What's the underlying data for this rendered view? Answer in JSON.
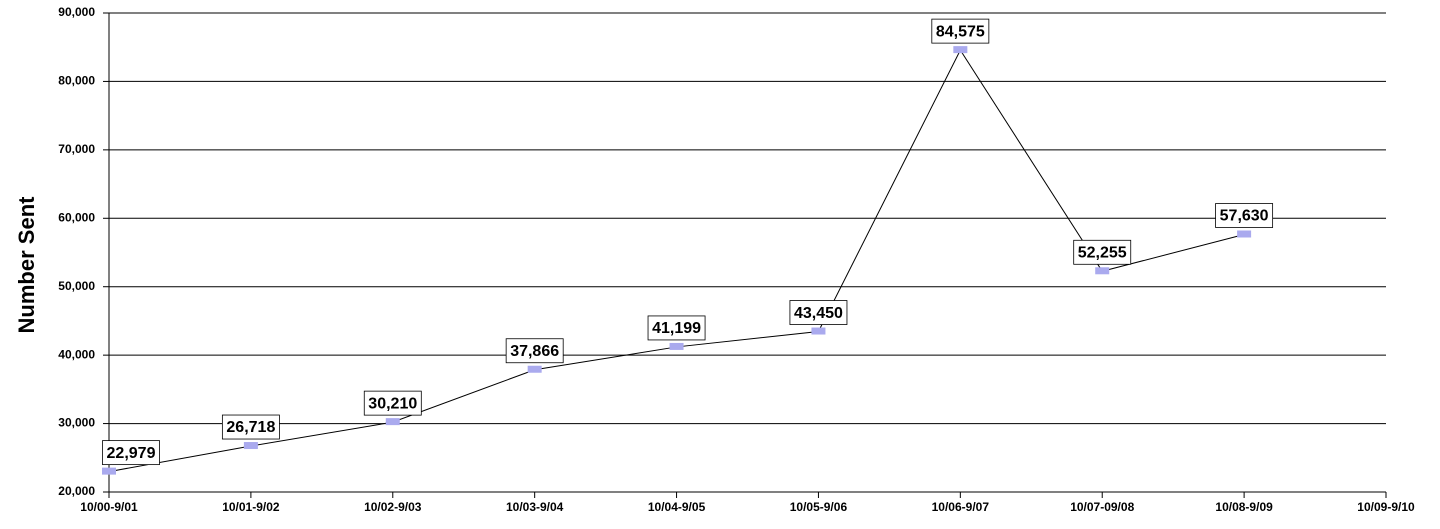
{
  "chart_data": {
    "type": "line",
    "y_label": "Number Sent",
    "categories": [
      "10/00-9/01",
      "10/01-9/02",
      "10/02-9/03",
      "10/03-9/04",
      "10/04-9/05",
      "10/05-9/06",
      "10/06-9/07",
      "10/07-09/08",
      "10/08-9/09",
      "10/09-9/10"
    ],
    "values": [
      22979,
      26718,
      30210,
      37866,
      41199,
      43450,
      84575,
      52255,
      57630,
      null
    ],
    "value_labels": [
      "22,979",
      "26,718",
      "30,210",
      "37,866",
      "41,199",
      "43,450",
      "84,575",
      "52,255",
      "57,630",
      null
    ],
    "color": "#000000",
    "marker_color": "#aaaaee",
    "ylim": [
      20000,
      90000
    ],
    "yticks": [
      {
        "value": 20000,
        "label": "20,000"
      },
      {
        "value": 30000,
        "label": "30,000"
      },
      {
        "value": 40000,
        "label": "40,000"
      },
      {
        "value": 50000,
        "label": "50,000"
      },
      {
        "value": 60000,
        "label": "60,000"
      },
      {
        "value": 70000,
        "label": "70,000"
      },
      {
        "value": 80000,
        "label": "80,000"
      },
      {
        "value": 90000,
        "label": "90,000"
      }
    ],
    "grid": true
  }
}
